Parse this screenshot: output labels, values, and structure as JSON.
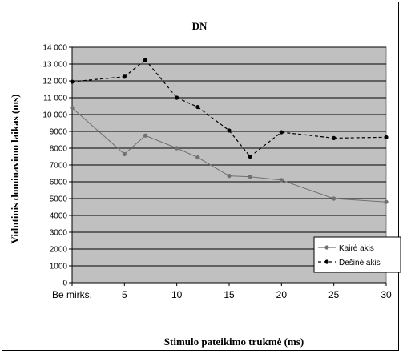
{
  "chart_data": {
    "type": "line",
    "title": "DN",
    "xlabel": "Stimulo pateikimo trukmė (ms)",
    "ylabel": "Vidutinis dominavimo laikas (ms)",
    "x_tick_labels": [
      "Be mirks.",
      "5",
      "10",
      "15",
      "20",
      "25",
      "30"
    ],
    "x_ticks": [
      0,
      5,
      10,
      15,
      20,
      25,
      30
    ],
    "xlim": [
      0,
      30
    ],
    "ylim": [
      0,
      14000
    ],
    "y_ticks": [
      0,
      1000,
      2000,
      3000,
      4000,
      5000,
      6000,
      7000,
      8000,
      9000,
      10000,
      11000,
      12000,
      13000,
      14000
    ],
    "y_tick_labels": [
      "0",
      "1000",
      "2000",
      "3000",
      "4000",
      "5000",
      "6000",
      "7000",
      "8000",
      "9000",
      "10 000",
      "11 000",
      "12 000",
      "13 000",
      "14 000"
    ],
    "grid": true,
    "legend_position": "right",
    "series": [
      {
        "name": "Kairė akis",
        "color": "#707070",
        "marker": "circle",
        "line_style": "solid",
        "x": [
          0,
          5,
          7,
          10,
          12,
          15,
          17,
          20,
          25,
          30
        ],
        "y": [
          10400,
          7650,
          8750,
          8000,
          7450,
          6350,
          6300,
          6100,
          5000,
          4800
        ]
      },
      {
        "name": "Dešinė akis",
        "color": "#000000",
        "marker": "circle",
        "line_style": "dashed",
        "x": [
          0,
          5,
          7,
          10,
          12,
          15,
          17,
          20,
          25,
          30
        ],
        "y": [
          11950,
          12250,
          13250,
          11000,
          10450,
          9050,
          7500,
          8950,
          8600,
          8650
        ]
      }
    ]
  }
}
